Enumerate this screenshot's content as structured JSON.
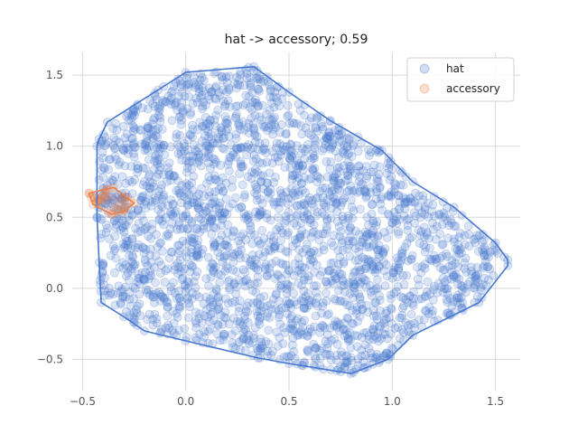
{
  "chart_data": {
    "type": "scatter",
    "title": "hat -> accessory; 0.59",
    "xlabel": "",
    "ylabel": "",
    "xlim": [
      -0.55,
      1.62
    ],
    "ylim": [
      -0.72,
      1.66
    ],
    "xticks": [
      -0.5,
      0.0,
      0.5,
      1.0,
      1.5
    ],
    "xtick_labels": [
      "−0.5",
      "0.0",
      "0.5",
      "1.0",
      "1.5"
    ],
    "yticks": [
      -0.5,
      0.0,
      0.5,
      1.0,
      1.5
    ],
    "ytick_labels": [
      "−0.5",
      "0.0",
      "0.5",
      "1.0",
      "1.5"
    ],
    "grid": true,
    "legend_position": "top-right",
    "series": [
      {
        "name": "hat",
        "color": "#4878CF",
        "point_alpha": 0.2,
        "approx_point_count": 2500,
        "hull": [
          [
            -0.42,
            1.05
          ],
          [
            -0.38,
            1.17
          ],
          [
            0.0,
            1.52
          ],
          [
            0.33,
            1.56
          ],
          [
            0.5,
            1.38
          ],
          [
            0.7,
            1.18
          ],
          [
            0.95,
            0.97
          ],
          [
            1.1,
            0.75
          ],
          [
            1.3,
            0.57
          ],
          [
            1.5,
            0.32
          ],
          [
            1.56,
            0.2
          ],
          [
            1.56,
            0.16
          ],
          [
            1.42,
            -0.1
          ],
          [
            1.1,
            -0.33
          ],
          [
            0.98,
            -0.5
          ],
          [
            0.8,
            -0.6
          ],
          [
            0.5,
            -0.53
          ],
          [
            0.35,
            -0.49
          ],
          [
            0.0,
            -0.37
          ],
          [
            -0.2,
            -0.3
          ],
          [
            -0.3,
            -0.2
          ],
          [
            -0.41,
            -0.1
          ],
          [
            -0.43,
            0.5
          ],
          [
            -0.43,
            1.0
          ]
        ]
      },
      {
        "name": "accessory",
        "color": "#E8804A",
        "point_alpha": 0.2,
        "approx_point_count": 40,
        "hull": [
          [
            -0.47,
            0.67
          ],
          [
            -0.35,
            0.71
          ],
          [
            -0.25,
            0.6
          ],
          [
            -0.3,
            0.54
          ],
          [
            -0.36,
            0.52
          ],
          [
            -0.45,
            0.59
          ]
        ]
      }
    ]
  }
}
